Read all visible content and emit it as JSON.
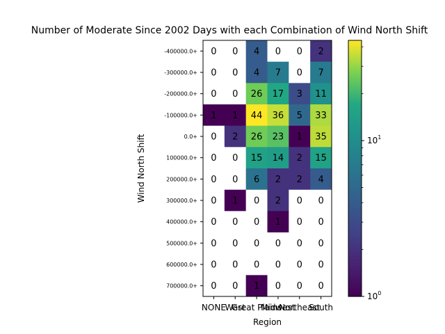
{
  "chart_data": {
    "type": "heatmap",
    "title": "Number of Moderate Since 2002 Days with each Combination of Wind North Shift",
    "xlabel": "Region",
    "ylabel": "Wind North Shift",
    "x_categories": [
      "NONE",
      "West",
      "Great Plains",
      "Midwest",
      "Northeast",
      "South"
    ],
    "y_categories": [
      "-400000.0+",
      "-300000.0+",
      "-200000.0+",
      "-100000.0+",
      "0.0+",
      "100000.0+",
      "200000.0+",
      "300000.0+",
      "400000.0+",
      "500000.0+",
      "600000.0+",
      "700000.0+"
    ],
    "values": [
      [
        0,
        0,
        4,
        0,
        0,
        2
      ],
      [
        0,
        0,
        4,
        7,
        0,
        7
      ],
      [
        0,
        0,
        26,
        17,
        3,
        11
      ],
      [
        1,
        1,
        44,
        36,
        5,
        33
      ],
      [
        0,
        2,
        26,
        23,
        1,
        35
      ],
      [
        0,
        0,
        15,
        14,
        2,
        15
      ],
      [
        0,
        0,
        6,
        2,
        2,
        4
      ],
      [
        0,
        1,
        0,
        2,
        0,
        0
      ],
      [
        0,
        0,
        0,
        1,
        0,
        0
      ],
      [
        0,
        0,
        0,
        0,
        0,
        0
      ],
      [
        0,
        0,
        0,
        0,
        0,
        0
      ],
      [
        0,
        0,
        1,
        0,
        0,
        0
      ]
    ],
    "colorbar": {
      "scale": "log",
      "colormap": "viridis",
      "range": [
        1,
        44
      ],
      "tick_labels": [
        "10^0",
        "10^1"
      ]
    },
    "zero_color": "#ffffff",
    "grid": false
  }
}
